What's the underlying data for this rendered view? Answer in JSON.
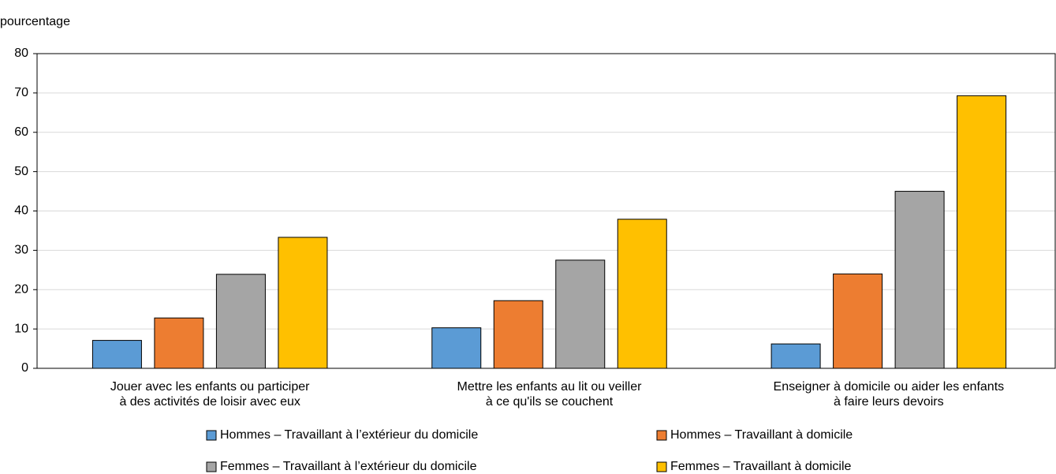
{
  "chart_data": {
    "type": "bar",
    "y_label": "pourcentage",
    "categories": [
      [
        "Jouer avec les enfants ou participer",
        "à des activités de loisir avec eux"
      ],
      [
        "Mettre les enfants au lit ou veiller",
        "à ce qu'ils se couchent"
      ],
      [
        "Enseigner à domicile ou aider les enfants",
        "à faire leurs devoirs"
      ]
    ],
    "series": [
      {
        "name": "Hommes –  Travaillant à l’extérieur du domicile",
        "color": "#5b9bd5",
        "values": [
          7.1,
          10.3,
          6.2
        ]
      },
      {
        "name": "Hommes – Travaillant à domicile",
        "color": "#ed7d31",
        "values": [
          12.8,
          17.2,
          24.0
        ]
      },
      {
        "name": "Femmes – Travaillant à l’extérieur du domicile",
        "color": "#a5a5a5",
        "values": [
          23.9,
          27.5,
          45.0
        ]
      },
      {
        "name": "Femmes – Travaillant à domicile",
        "color": "#ffc000",
        "values": [
          33.3,
          37.9,
          69.3
        ]
      }
    ],
    "ylim": [
      0,
      80
    ],
    "yticks": [
      0,
      10,
      20,
      30,
      40,
      50,
      60,
      70,
      80
    ],
    "grid": true
  }
}
